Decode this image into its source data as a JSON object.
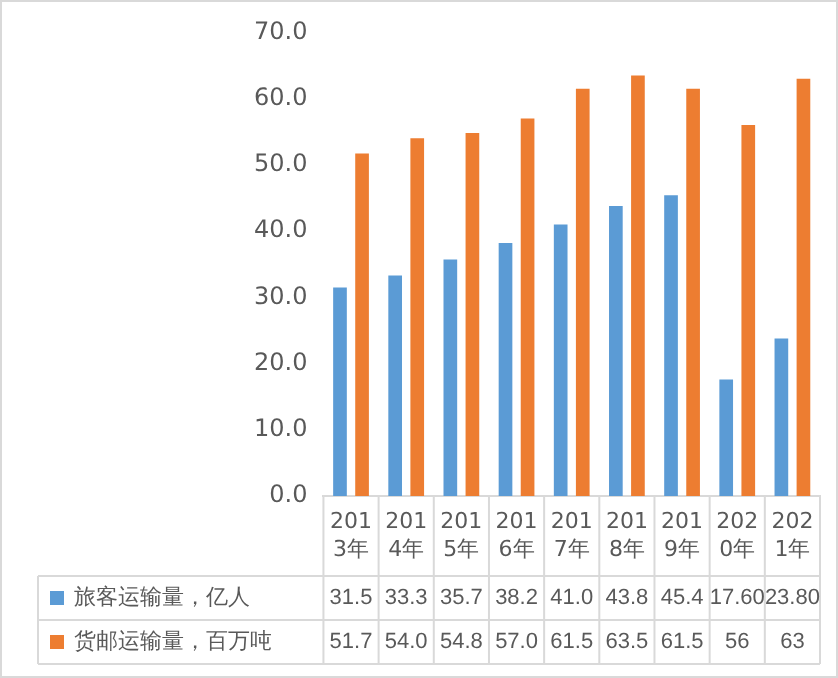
{
  "chart_data": {
    "type": "bar",
    "categories": [
      "2013年",
      "2014年",
      "2015年",
      "2016年",
      "2017年",
      "2018年",
      "2019年",
      "2020年",
      "2021年"
    ],
    "series": [
      {
        "name": "旅客运输量，亿人",
        "color": "#5b9bd5",
        "values": [
          31.5,
          33.3,
          35.7,
          38.2,
          41.0,
          43.8,
          45.4,
          17.6,
          23.8
        ],
        "value_labels": [
          "31.5",
          "33.3",
          "35.7",
          "38.2",
          "41.0",
          "43.8",
          "45.4",
          "17.60",
          "23.80"
        ]
      },
      {
        "name": "货邮运输量，百万吨",
        "color": "#ed7d31",
        "values": [
          51.7,
          54.0,
          54.8,
          57.0,
          61.5,
          63.5,
          61.5,
          56,
          63
        ],
        "value_labels": [
          "51.7",
          "54.0",
          "54.8",
          "57.0",
          "61.5",
          "63.5",
          "61.5",
          "56",
          "63"
        ]
      }
    ],
    "ylim": [
      0,
      70
    ],
    "yticks": [
      {
        "value": 0,
        "label": "0.0"
      },
      {
        "value": 10,
        "label": "10.0"
      },
      {
        "value": 20,
        "label": "20.0"
      },
      {
        "value": 30,
        "label": "30.0"
      },
      {
        "value": 40,
        "label": "40.0"
      },
      {
        "value": 50,
        "label": "50.0"
      },
      {
        "value": 60,
        "label": "60.0"
      },
      {
        "value": 70,
        "label": "70.0"
      }
    ],
    "grid": false,
    "legend": "bottom"
  }
}
